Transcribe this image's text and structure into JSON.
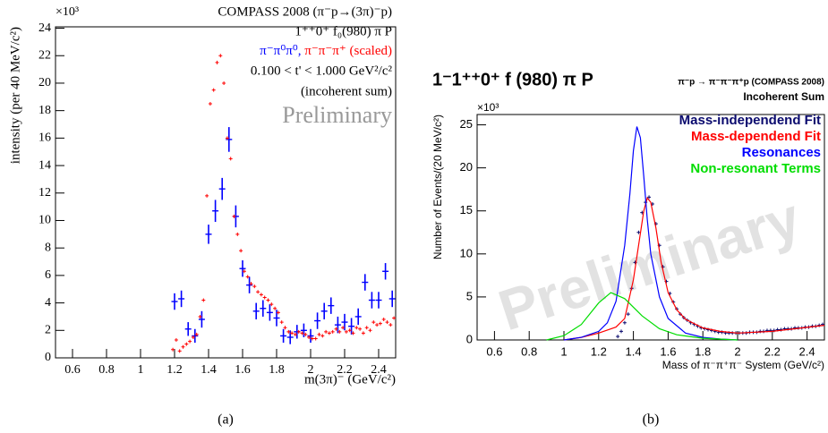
{
  "chart_data": [
    {
      "type": "scatter",
      "title": "COMPASS 2008 (π⁻p→(3π)⁻p)",
      "annotations": [
        "1⁺⁺0⁺ f₀(980) π P",
        "0.100 < t' < 1.000 GeV²/c²",
        "(incoherent sum)"
      ],
      "watermark": "Preliminary",
      "xlabel": "m(3π)⁻ (GeV/c²)",
      "ylabel": "intensity (per 40 MeV/c²)",
      "y_multiplier": "×10³",
      "caption": "(a)",
      "xlim": [
        0.5,
        2.5
      ],
      "xticks": [
        0.6,
        0.8,
        1,
        1.2,
        1.4,
        1.6,
        1.8,
        2,
        2.2,
        2.4
      ],
      "ylim": [
        0,
        24.1
      ],
      "yticks": [
        0,
        2,
        4,
        6,
        8,
        10,
        12,
        14,
        16,
        18,
        20,
        22,
        24
      ],
      "legend": "top-right",
      "series": [
        {
          "name": "π⁻π⁰π⁰,",
          "color": "#0000ff",
          "mode": "errorbar",
          "x": [
            1.2,
            1.24,
            1.28,
            1.32,
            1.36,
            1.4,
            1.44,
            1.48,
            1.52,
            1.56,
            1.6,
            1.64,
            1.68,
            1.72,
            1.76,
            1.8,
            1.84,
            1.88,
            1.92,
            1.96,
            2,
            2.04,
            2.08,
            2.12,
            2.16,
            2.2,
            2.24,
            2.28,
            2.32,
            2.36,
            2.4,
            2.44,
            2.48
          ],
          "values": [
            4.1,
            4.3,
            2.1,
            1.6,
            2.8,
            9.0,
            10.7,
            12.3,
            15.9,
            10.3,
            6.5,
            5.3,
            3.4,
            3.6,
            3.3,
            2.9,
            1.6,
            1.5,
            1.9,
            2.0,
            1.6,
            2.7,
            3.4,
            3.8,
            2.4,
            2.6,
            2.3,
            3.0,
            5.5,
            4.2,
            4.2,
            6.3,
            4.3
          ],
          "errors": [
            0.6,
            0.6,
            0.5,
            0.5,
            0.6,
            0.7,
            0.8,
            0.8,
            0.9,
            0.8,
            0.6,
            0.6,
            0.6,
            0.6,
            0.6,
            0.6,
            0.5,
            0.5,
            0.5,
            0.5,
            0.5,
            0.6,
            0.6,
            0.6,
            0.6,
            0.6,
            0.6,
            0.6,
            0.6,
            0.6,
            0.6,
            0.6,
            0.6
          ]
        },
        {
          "name": "π⁻π⁻π⁺ (scaled)",
          "color": "#ff0000",
          "mode": "points",
          "x": [
            1.19,
            1.21,
            1.23,
            1.25,
            1.27,
            1.29,
            1.31,
            1.33,
            1.35,
            1.37,
            1.39,
            1.41,
            1.43,
            1.45,
            1.47,
            1.49,
            1.51,
            1.53,
            1.55,
            1.57,
            1.59,
            1.61,
            1.63,
            1.65,
            1.67,
            1.69,
            1.71,
            1.73,
            1.75,
            1.77,
            1.79,
            1.81,
            1.83,
            1.85,
            1.87,
            1.89,
            1.91,
            1.93,
            1.95,
            1.97,
            1.99,
            2.01,
            2.03,
            2.05,
            2.07,
            2.09,
            2.11,
            2.13,
            2.15,
            2.17,
            2.19,
            2.21,
            2.23,
            2.25,
            2.27,
            2.29,
            2.31,
            2.33,
            2.35,
            2.37,
            2.39,
            2.41,
            2.43,
            2.45,
            2.47,
            2.49
          ],
          "values": [
            0.6,
            1.3,
            0.5,
            0.8,
            1.0,
            1.2,
            1.5,
            1.7,
            3.0,
            4.2,
            11.8,
            18.5,
            19.5,
            21.5,
            22.0,
            20.0,
            16.0,
            14.5,
            10.3,
            9.0,
            7.8,
            6.3,
            5.9,
            5.4,
            5.2,
            4.8,
            4.6,
            4.4,
            4.2,
            3.9,
            3.6,
            3.3,
            2.6,
            2.2,
            1.9,
            1.8,
            1.7,
            1.9,
            1.8,
            1.7,
            1.5,
            1.4,
            1.4,
            1.7,
            1.6,
            1.9,
            1.8,
            1.9,
            2.1,
            1.9,
            2.2,
            1.9,
            2.0,
            1.8,
            2.2,
            2.1,
            1.8,
            2.2,
            2.0,
            2.6,
            2.4,
            2.5,
            2.8,
            2.6,
            2.4,
            2.9
          ]
        }
      ]
    },
    {
      "type": "line",
      "title": "1⁻1⁺⁺0⁺ f (980) π P",
      "annotations": [
        "π⁻p → π⁻π⁻π⁺p (COMPASS 2008)",
        "Incoherent Sum"
      ],
      "watermark": "Preliminary",
      "xlabel": "Mass of π⁻π⁺π⁻ System (GeV/c²)",
      "ylabel": "Number of Events/(20 MeV/c²)",
      "y_multiplier": "×10³",
      "caption": "(b)",
      "xlim": [
        0.5,
        2.5
      ],
      "xticks": [
        0.6,
        0.8,
        1,
        1.2,
        1.4,
        1.6,
        1.8,
        2,
        2.2,
        2.4
      ],
      "ylim": [
        0,
        26.2
      ],
      "yticks": [
        0,
        5,
        10,
        15,
        20,
        25
      ],
      "legend": "top-right",
      "series": [
        {
          "name": "Mass-independend Fit",
          "color": "#0a0a6e",
          "mode": "points",
          "x": [
            1.31,
            1.33,
            1.35,
            1.37,
            1.39,
            1.41,
            1.43,
            1.45,
            1.47,
            1.49,
            1.51,
            1.53,
            1.55,
            1.57,
            1.59,
            1.61,
            1.63,
            1.65,
            1.67,
            1.69,
            1.71,
            1.73,
            1.75,
            1.77,
            1.79,
            1.81,
            1.83,
            1.85,
            1.87,
            1.89,
            1.91,
            1.93,
            1.95,
            1.97,
            1.99,
            2.01,
            2.03,
            2.05,
            2.07,
            2.09,
            2.11,
            2.13,
            2.15,
            2.17,
            2.19,
            2.21,
            2.23,
            2.25,
            2.27,
            2.29,
            2.31,
            2.33,
            2.35,
            2.37,
            2.39,
            2.41,
            2.43,
            2.45,
            2.47,
            2.49
          ],
          "values": [
            0.4,
            1.0,
            2.0,
            3.0,
            6.0,
            9.0,
            12.5,
            14.8,
            16.0,
            16.6,
            15.8,
            13.5,
            11.0,
            8.5,
            6.8,
            5.4,
            4.4,
            3.6,
            3.0,
            2.6,
            2.3,
            2.0,
            1.8,
            1.6,
            1.4,
            1.3,
            1.2,
            1.1,
            1.0,
            0.9,
            0.9,
            0.8,
            0.8,
            0.8,
            0.8,
            0.8,
            0.8,
            0.8,
            0.9,
            0.9,
            0.9,
            1.0,
            1.0,
            1.1,
            1.1,
            1.1,
            1.2,
            1.2,
            1.3,
            1.3,
            1.3,
            1.4,
            1.4,
            1.4,
            1.5,
            1.5,
            1.6,
            1.6,
            1.7,
            1.8
          ]
        },
        {
          "name": "Mass-dependend Fit",
          "color": "#ff0000",
          "mode": "line",
          "x": [
            1.0,
            1.1,
            1.2,
            1.3,
            1.35,
            1.4,
            1.43,
            1.46,
            1.48,
            1.5,
            1.53,
            1.56,
            1.6,
            1.65,
            1.7,
            1.8,
            1.9,
            2.0,
            2.2,
            2.5
          ],
          "values": [
            0,
            0.3,
            0.8,
            1.5,
            2.5,
            7,
            11,
            15,
            16.5,
            16,
            13,
            9,
            5.5,
            3.5,
            2.4,
            1.4,
            1.0,
            0.8,
            1.0,
            1.7
          ]
        },
        {
          "name": "Resonances",
          "color": "#0000ff",
          "mode": "line",
          "x": [
            1.0,
            1.1,
            1.2,
            1.25,
            1.3,
            1.35,
            1.38,
            1.4,
            1.42,
            1.44,
            1.46,
            1.48,
            1.5,
            1.55,
            1.6,
            1.7,
            1.8,
            1.9,
            2.0
          ],
          "values": [
            0,
            0.3,
            1.0,
            2,
            4.5,
            11,
            17,
            22,
            24.8,
            23.5,
            19,
            14,
            10,
            5,
            2.5,
            0.8,
            0.3,
            0.1,
            0
          ]
        },
        {
          "name": "Non-resonant Terms",
          "color": "#00dd00",
          "mode": "line",
          "x": [
            0.9,
            1.0,
            1.1,
            1.2,
            1.27,
            1.35,
            1.45,
            1.55,
            1.65,
            1.8,
            2.0
          ],
          "values": [
            0,
            0.5,
            1.8,
            4.3,
            5.5,
            4.8,
            2.8,
            1.3,
            0.6,
            0.2,
            0
          ]
        }
      ]
    }
  ]
}
